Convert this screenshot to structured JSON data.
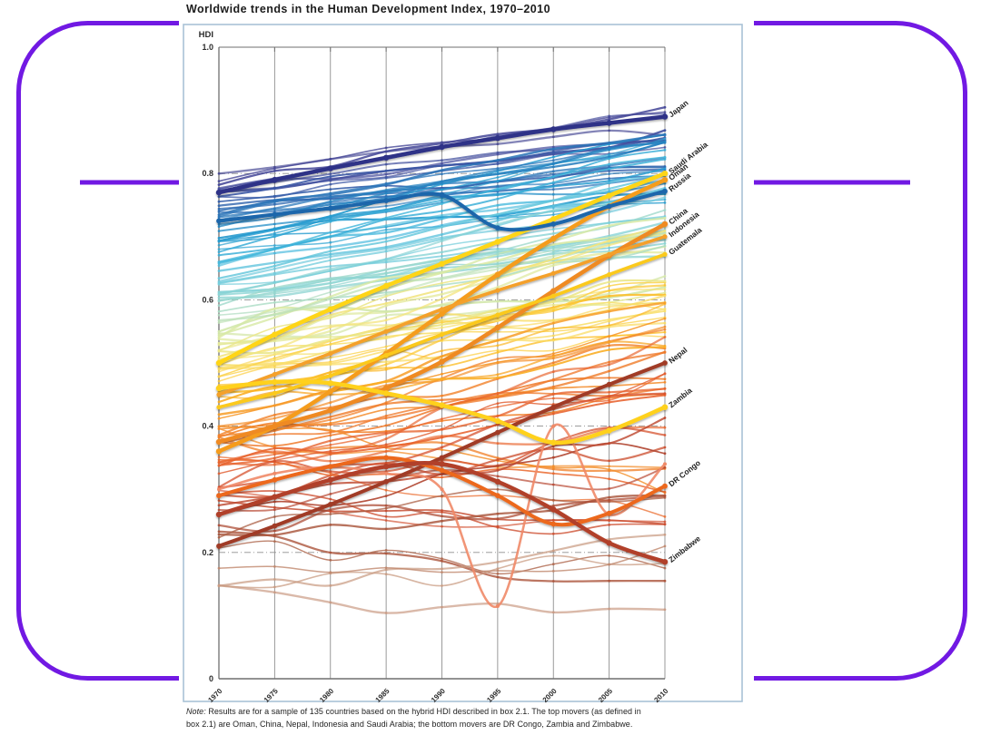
{
  "title": "Worldwide trends in the Human Development Index, 1970–2010",
  "note": {
    "prefix": "Note:",
    "line1_rest": " Results are for a sample of 135 countries based on the hybrid HDI described in box 2.1. The top movers (as defined in",
    "line2": "box 2.1) are Oman, China, Nepal, Indonesia and Saudi Arabia; the bottom movers are DR Congo, Zambia and Zimbabwe."
  },
  "annotation": {
    "color": "#7119e3",
    "shapes": [
      "rounded-rectangle-border",
      "horizontal-line"
    ]
  },
  "panel": {
    "border_color": "#a9c2d6",
    "background": "#ffffff"
  },
  "grid_color": "#8f8f8f",
  "chart_data": {
    "type": "line",
    "title": "Worldwide trends in the Human Development Index, 1970–2010",
    "ylabel": "HDI",
    "xlabel": "",
    "ylim": [
      0,
      1.0
    ],
    "y_ticks": [
      "1.0",
      "0.8",
      "0.6",
      "0.4",
      "0.2",
      "0"
    ],
    "x": [
      1970,
      1975,
      1980,
      1985,
      1990,
      1995,
      2000,
      2005,
      2010
    ],
    "grid": "vertical solid per year; horizontal dash-dot at 0.2/0.4/0.6/0.8; legend none; labels at right line ends",
    "series": [
      {
        "name": "Japan",
        "color": "#2e3087",
        "width": 4.5,
        "values": [
          0.77,
          0.79,
          0.808,
          0.825,
          0.842,
          0.856,
          0.87,
          0.88,
          0.89
        ]
      },
      {
        "name": "Saudi Arabia",
        "color": "#ffd517",
        "width": 4.5,
        "values": [
          0.5,
          0.545,
          0.585,
          0.622,
          0.657,
          0.692,
          0.728,
          0.765,
          0.8
        ]
      },
      {
        "name": "Oman",
        "color": "#f59c1f",
        "width": 4.5,
        "values": [
          0.36,
          0.4,
          0.455,
          0.515,
          0.578,
          0.64,
          0.697,
          0.748,
          0.79
        ]
      },
      {
        "name": "Russia",
        "color": "#1d66ab",
        "width": 4.0,
        "values": [
          0.725,
          0.735,
          0.745,
          0.757,
          0.766,
          0.714,
          0.72,
          0.748,
          0.772
        ]
      },
      {
        "name": "China",
        "color": "#ef8a21",
        "width": 4.5,
        "values": [
          0.375,
          0.4,
          0.425,
          0.46,
          0.502,
          0.556,
          0.614,
          0.67,
          0.72
        ]
      },
      {
        "name": "Indonesia",
        "color": "#f4a02a",
        "width": 3.6,
        "values": [
          0.45,
          0.482,
          0.515,
          0.55,
          0.585,
          0.615,
          0.642,
          0.672,
          0.7
        ]
      },
      {
        "name": "Guatemala",
        "color": "#fbc91d",
        "width": 3.6,
        "values": [
          0.43,
          0.452,
          0.48,
          0.512,
          0.545,
          0.576,
          0.606,
          0.64,
          0.672
        ]
      },
      {
        "name": "Nepal",
        "color": "#a03b27",
        "width": 4.0,
        "values": [
          0.21,
          0.242,
          0.276,
          0.312,
          0.35,
          0.39,
          0.43,
          0.466,
          0.5
        ]
      },
      {
        "name": "Zambia",
        "color": "#ffd11a",
        "width": 4.5,
        "values": [
          0.46,
          0.47,
          0.468,
          0.452,
          0.433,
          0.408,
          0.374,
          0.393,
          0.43
        ]
      },
      {
        "name": "DR Congo",
        "color": "#ec671f",
        "width": 4.0,
        "values": [
          0.29,
          0.315,
          0.336,
          0.35,
          0.33,
          0.29,
          0.245,
          0.262,
          0.305
        ]
      },
      {
        "name": "Zimbabwe",
        "color": "#b14029",
        "width": 4.5,
        "values": [
          0.26,
          0.288,
          0.315,
          0.336,
          0.34,
          0.312,
          0.268,
          0.215,
          0.185
        ]
      }
    ],
    "background": {
      "count": 124,
      "description": "remaining unlabeled countries of the 135-country sample, thin smooth rising lines with 5-year point markers, colored by 1970 HDI from dark indigo (high) through blue, cyan, pale green, yellow, orange, red to light brown (low)",
      "special_dip_series": {
        "color": "#ef8a68",
        "width": 2.6,
        "values": [
          0.3,
          0.325,
          0.335,
          0.325,
          0.3,
          0.115,
          0.4,
          0.26,
          0.34
        ]
      },
      "colormap": [
        [
          0.145,
          "#c99a82"
        ],
        [
          0.18,
          "#bd8266"
        ],
        [
          0.22,
          "#a85c41"
        ],
        [
          0.26,
          "#b04430"
        ],
        [
          0.3,
          "#d44f2e"
        ],
        [
          0.34,
          "#e8622c"
        ],
        [
          0.38,
          "#f07d28"
        ],
        [
          0.42,
          "#f79d25"
        ],
        [
          0.46,
          "#fdc327"
        ],
        [
          0.5,
          "#f8e272"
        ],
        [
          0.54,
          "#ddeaa2"
        ],
        [
          0.58,
          "#abdcc3"
        ],
        [
          0.62,
          "#7cd0dc"
        ],
        [
          0.66,
          "#45b8dc"
        ],
        [
          0.7,
          "#2196cc"
        ],
        [
          0.74,
          "#2b6db4"
        ],
        [
          0.78,
          "#47499a"
        ],
        [
          0.82,
          "#3b3a85"
        ]
      ]
    }
  }
}
